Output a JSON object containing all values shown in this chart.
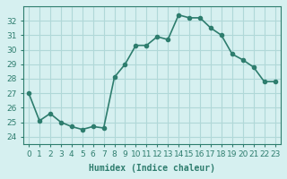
{
  "x": [
    0,
    1,
    2,
    3,
    4,
    5,
    6,
    7,
    8,
    9,
    10,
    11,
    12,
    13,
    14,
    15,
    16,
    17,
    18,
    19,
    20,
    21,
    22,
    23
  ],
  "y": [
    27.0,
    25.1,
    25.6,
    25.0,
    24.7,
    24.5,
    24.7,
    24.6,
    28.1,
    29.0,
    30.3,
    30.3,
    30.9,
    30.7,
    32.4,
    32.2,
    32.2,
    31.5,
    31.0,
    29.7,
    29.3,
    28.8,
    27.8,
    27.8
  ],
  "line_color": "#2e7d6e",
  "marker": "o",
  "marker_size": 3,
  "bg_color": "#d6f0f0",
  "grid_color": "#b0d8d8",
  "xlabel": "Humidex (Indice chaleur)",
  "ylim": [
    23.5,
    33.0
  ],
  "xlim": [
    -0.5,
    23.5
  ],
  "yticks": [
    24,
    25,
    26,
    27,
    28,
    29,
    30,
    31,
    32
  ],
  "xticks": [
    0,
    1,
    2,
    3,
    4,
    5,
    6,
    7,
    8,
    9,
    10,
    11,
    12,
    13,
    14,
    15,
    16,
    17,
    18,
    19,
    20,
    21,
    22,
    23
  ],
  "xtick_labels": [
    "0",
    "1",
    "2",
    "3",
    "4",
    "5",
    "6",
    "7",
    "8",
    "9",
    "10",
    "11",
    "12",
    "13",
    "14",
    "15",
    "16",
    "17",
    "18",
    "19",
    "20",
    "21",
    "22",
    "23"
  ],
  "tick_color": "#2e7d6e",
  "axis_color": "#2e7d6e",
  "label_fontsize": 7,
  "tick_fontsize": 6.5,
  "line_width": 1.2
}
